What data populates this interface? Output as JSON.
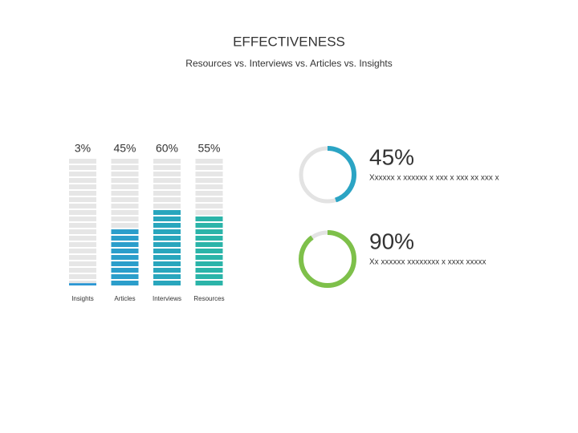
{
  "chart_data": [
    {
      "type": "bar",
      "title": "EFFECTIVENESS",
      "subtitle": "Resources vs. Interviews vs. Articles vs. Insights",
      "categories": [
        "Insights",
        "Articles",
        "Interviews",
        "Resources"
      ],
      "values": [
        3,
        45,
        60,
        55
      ],
      "value_labels": [
        "3%",
        "45%",
        "60%",
        "55%"
      ],
      "colors": [
        "#2b97d4",
        "#2b9ecb",
        "#29a6bd",
        "#2bb4a9"
      ],
      "ylim": [
        0,
        100
      ]
    },
    {
      "type": "donut",
      "value": 45,
      "value_label": "45%",
      "caption": "Xxxxxx x xxxxxx x xxx x xxx xx xxx x",
      "color": "#2ba4c4"
    },
    {
      "type": "donut",
      "value": 90,
      "value_label": "90%",
      "caption": "Xx xxxxxx xxxxxxxx x xxxx xxxxx",
      "color": "#7ec04a"
    }
  ]
}
